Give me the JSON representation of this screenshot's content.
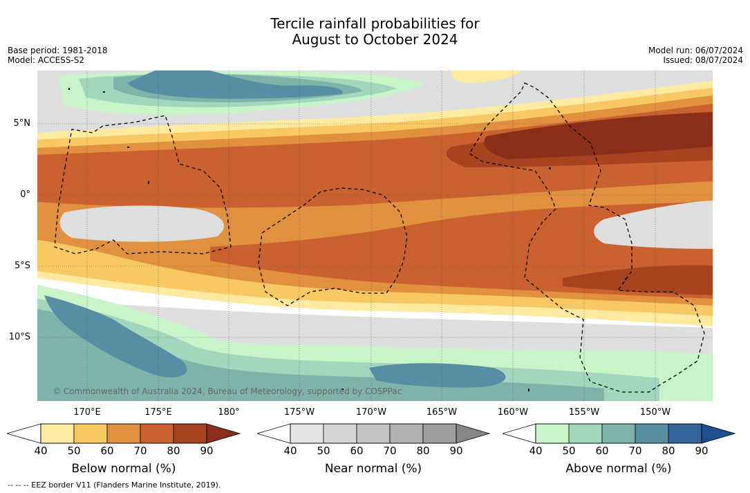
{
  "title": {
    "line1": "Tercile rainfall probabilities for",
    "line2": "August to October 2024"
  },
  "meta": {
    "base_period": "Base period: 1981-2018",
    "model": "Model: ACCESS-S2",
    "model_run": "Model run: 06/07/2024",
    "issued": "Issued: 08/07/2024"
  },
  "axes": {
    "lat_labels": [
      "5°N",
      "0°",
      "5°S",
      "10°S"
    ],
    "lon_labels": [
      "170°E",
      "175°E",
      "180°",
      "175°W",
      "170°W",
      "165°W",
      "160°W",
      "155°W",
      "150°W"
    ]
  },
  "copyright": "© Commonwealth of Australia 2024, Bureau of Meteorology, supported by COSPPac",
  "legends": {
    "below": {
      "title": "Below normal (%)",
      "ticks": [
        "40",
        "50",
        "60",
        "70",
        "80",
        "90"
      ],
      "colors": [
        "#fdeaa0",
        "#f8c862",
        "#e0903f",
        "#c9622f",
        "#a84320",
        "#8a2e1a"
      ]
    },
    "near": {
      "title": "Near normal (%)",
      "ticks": [
        "40",
        "50",
        "60",
        "70",
        "80",
        "90"
      ],
      "colors": [
        "#e5e5e5",
        "#d5d5d5",
        "#c4c4c4",
        "#b1b1b1",
        "#9e9e9e",
        "#868686"
      ]
    },
    "above": {
      "title": "Above normal (%)",
      "ticks": [
        "40",
        "50",
        "60",
        "70",
        "80",
        "90"
      ],
      "colors": [
        "#c8f5c8",
        "#a2d6bd",
        "#7fb3aa",
        "#578ea4",
        "#33649a",
        "#1e4f8c"
      ]
    }
  },
  "footnote": "-- -- -- EEZ border V11 (Flanders Marine Institute, 2019).",
  "colors": {
    "ocean_bg": "#ffffff",
    "grid": "#555555",
    "eez": "#000000"
  }
}
